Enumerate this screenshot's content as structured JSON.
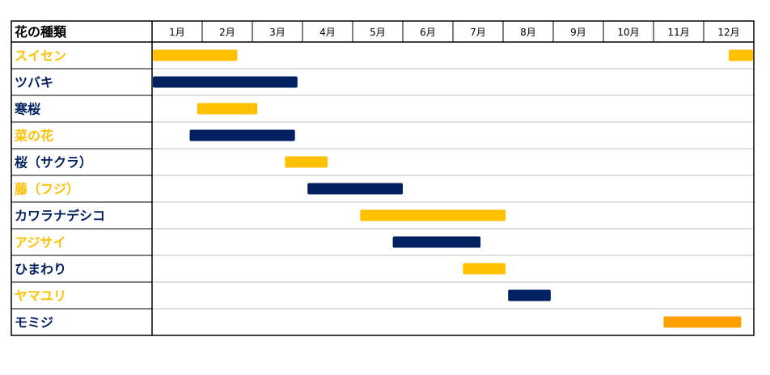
{
  "chart_data": {
    "type": "table",
    "header_label": "花の種類",
    "months": [
      "1月",
      "2月",
      "3月",
      "4月",
      "5月",
      "6月",
      "7月",
      "8月",
      "9月",
      "10月",
      "11月",
      "12月"
    ],
    "colors": {
      "gold": "#FFC000",
      "navy": "#002060",
      "orange": "#FFA000",
      "border": "#000000",
      "grid": "#BFBFBF"
    },
    "flowers": [
      {
        "name": "スイセン",
        "label_color": "gold",
        "periods": [
          {
            "start": 1.0,
            "end": 2.7,
            "color": "gold"
          },
          {
            "start": 12.5,
            "end": 13.0,
            "color": "gold"
          }
        ]
      },
      {
        "name": "ツバキ",
        "label_color": "navy",
        "periods": [
          {
            "start": 1.0,
            "end": 3.9,
            "color": "navy"
          }
        ]
      },
      {
        "name": "寒桜",
        "label_color": "navy",
        "periods": [
          {
            "start": 1.9,
            "end": 3.1,
            "color": "gold"
          }
        ]
      },
      {
        "name": "菜の花",
        "label_color": "gold",
        "periods": [
          {
            "start": 1.75,
            "end": 3.85,
            "color": "navy"
          }
        ]
      },
      {
        "name": "桜（サクラ）",
        "label_color": "navy",
        "periods": [
          {
            "start": 3.65,
            "end": 4.5,
            "color": "gold"
          }
        ]
      },
      {
        "name": "藤（フジ）",
        "label_color": "gold",
        "periods": [
          {
            "start": 4.1,
            "end": 6.0,
            "color": "navy"
          }
        ]
      },
      {
        "name": "カワラナデシコ",
        "label_color": "navy",
        "periods": [
          {
            "start": 5.15,
            "end": 8.05,
            "color": "gold"
          }
        ]
      },
      {
        "name": "アジサイ",
        "label_color": "gold",
        "periods": [
          {
            "start": 5.8,
            "end": 7.55,
            "color": "navy"
          }
        ]
      },
      {
        "name": "ひまわり",
        "label_color": "navy",
        "periods": [
          {
            "start": 7.2,
            "end": 8.05,
            "color": "gold"
          }
        ]
      },
      {
        "name": "ヤマユリ",
        "label_color": "gold",
        "periods": [
          {
            "start": 8.1,
            "end": 8.95,
            "color": "navy"
          }
        ]
      },
      {
        "name": "モミジ",
        "label_color": "navy",
        "periods": [
          {
            "start": 11.2,
            "end": 12.75,
            "color": "orange"
          }
        ]
      }
    ]
  }
}
